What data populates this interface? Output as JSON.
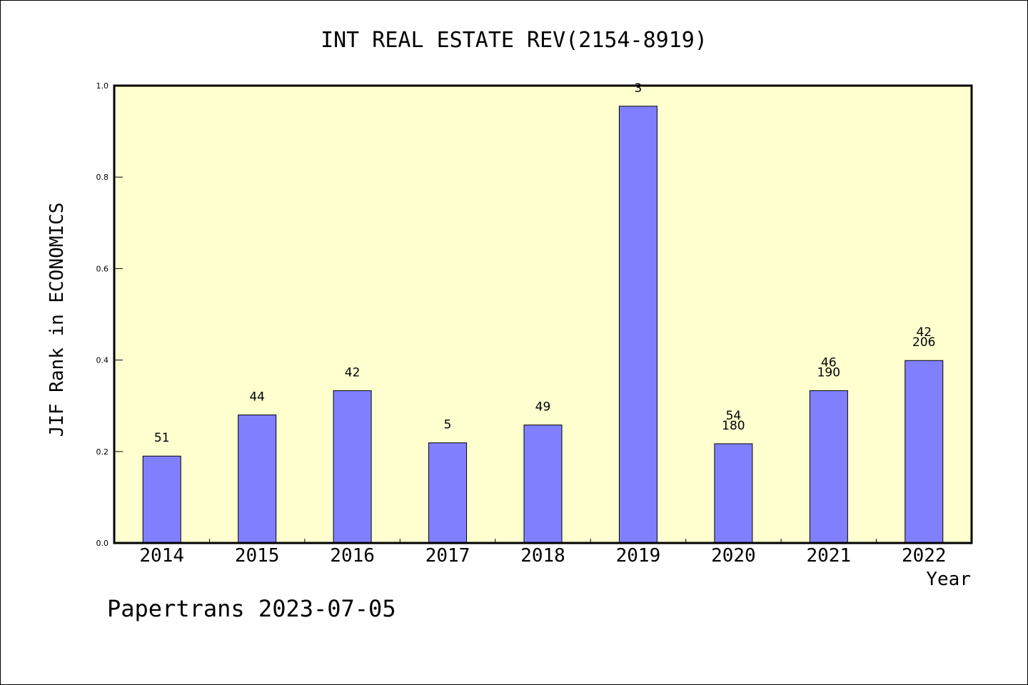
{
  "chart_data": {
    "type": "bar",
    "title": "INT REAL ESTATE REV(2154-8919)",
    "xlabel": "Year",
    "ylabel": "JIF Rank in ECONOMICS",
    "ylim": [
      0,
      1.0
    ],
    "yticks": [
      "0.0",
      "0.2",
      "0.4",
      "0.6",
      "0.8",
      "1.0"
    ],
    "categories": [
      "2014",
      "2015",
      "2016",
      "2017",
      "2018",
      "2019",
      "2020",
      "2021",
      "2022"
    ],
    "values": [
      0.19,
      0.28,
      0.333,
      0.219,
      0.258,
      0.955,
      0.217,
      0.333,
      0.399
    ],
    "labels": [
      [
        "51"
      ],
      [
        "44"
      ],
      [
        "42"
      ],
      [
        "5"
      ],
      [
        "49"
      ],
      [
        "3"
      ],
      [
        "54",
        "180"
      ],
      [
        "46",
        "190"
      ],
      [
        "42",
        "206"
      ]
    ],
    "grid": false,
    "colors": {
      "bar": "#8080ff",
      "plot_background": "#ffffd0"
    }
  },
  "footer": "Papertrans 2023-07-05"
}
